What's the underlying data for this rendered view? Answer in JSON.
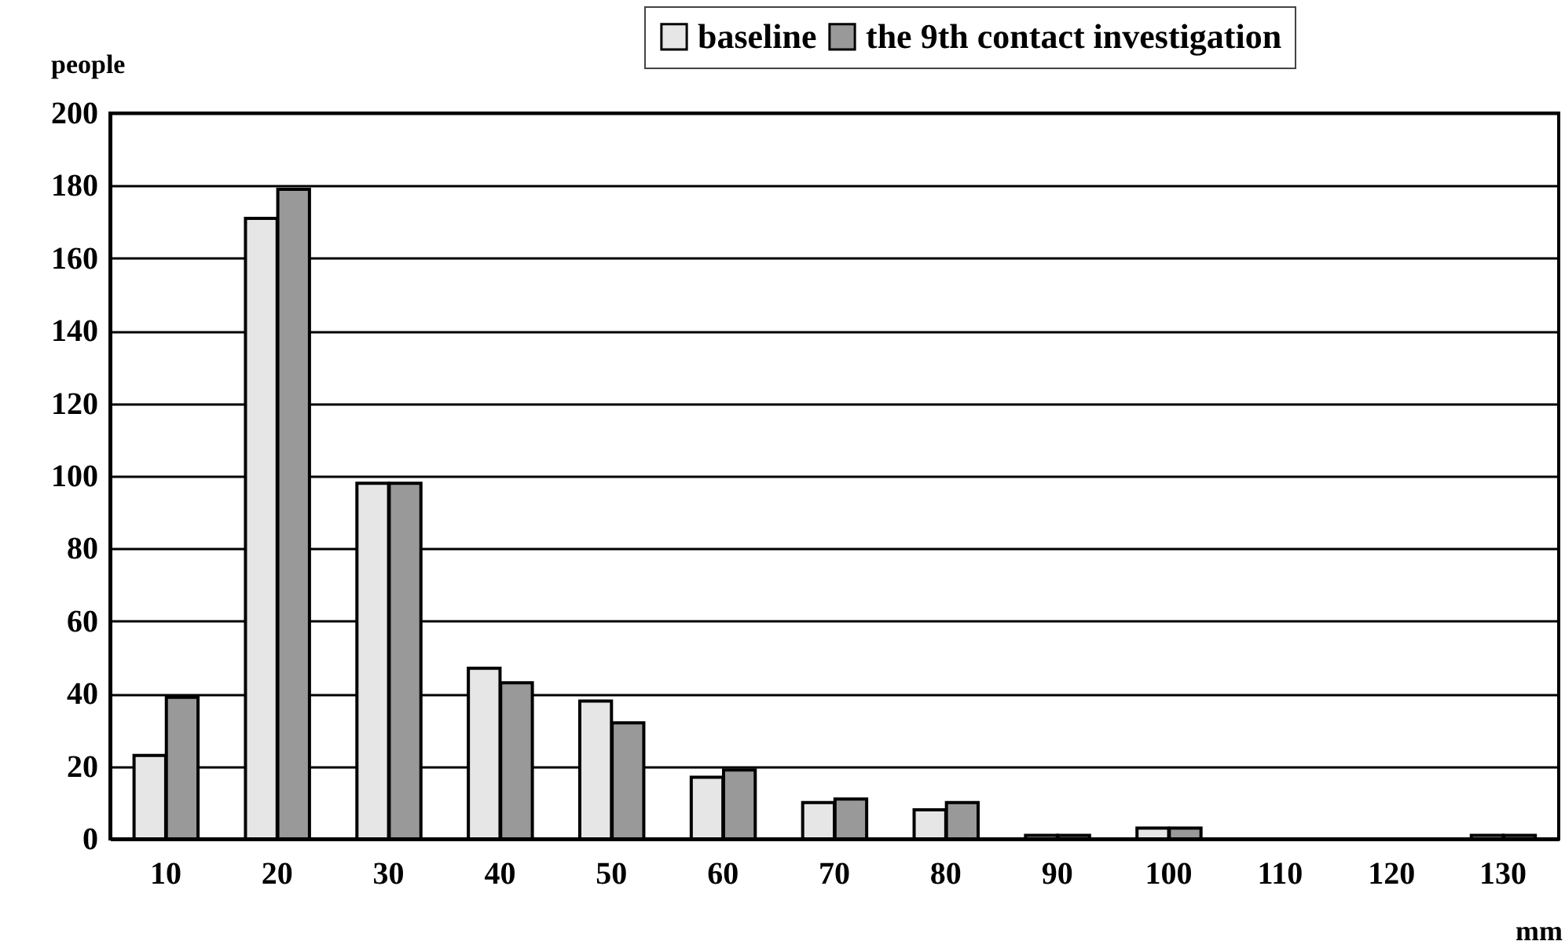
{
  "chart_data": {
    "type": "bar",
    "xlabel": "mm",
    "ylabel": "people",
    "categories": [
      "10",
      "20",
      "30",
      "40",
      "50",
      "60",
      "70",
      "80",
      "90",
      "100",
      "110",
      "120",
      "130"
    ],
    "series": [
      {
        "name": "baseline",
        "color": "#e6e6e6",
        "values": [
          23,
          171,
          98,
          47,
          38,
          17,
          10,
          8,
          1,
          3,
          0,
          0,
          1
        ]
      },
      {
        "name": "the 9th contact investigation",
        "color": "#999999",
        "values": [
          39,
          179,
          98,
          43,
          32,
          19,
          11,
          10,
          1,
          3,
          0,
          0,
          1
        ]
      }
    ],
    "ylim": [
      0,
      200
    ],
    "yticks": [
      0,
      20,
      40,
      60,
      80,
      100,
      120,
      140,
      160,
      180,
      200
    ],
    "grid": "y",
    "legend": "top right"
  }
}
